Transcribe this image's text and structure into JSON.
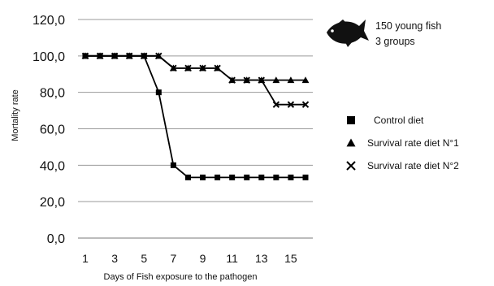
{
  "chart_data": {
    "type": "line",
    "title": "",
    "xlabel": "Days of Fish exposure to the pathogen",
    "ylabel": "Mortality rate",
    "x": [
      1,
      2,
      3,
      4,
      5,
      6,
      7,
      8,
      9,
      10,
      11,
      12,
      13,
      14,
      15,
      16
    ],
    "x_tick_labels": [
      "1",
      "3",
      "5",
      "7",
      "9",
      "11",
      "13",
      "15"
    ],
    "x_tick_values": [
      1,
      3,
      5,
      7,
      9,
      11,
      13,
      15
    ],
    "y_tick_labels": [
      "0,0",
      "20,0",
      "40,0",
      "60,0",
      "80,0",
      "100,0",
      "120,0"
    ],
    "y_tick_values": [
      0,
      20,
      40,
      60,
      80,
      100,
      120
    ],
    "ylim": [
      0,
      120
    ],
    "grid": "horizontal",
    "legend_position": "right",
    "series": [
      {
        "name": "Control diet",
        "marker": "square",
        "color": "#000000",
        "values": [
          100,
          100,
          100,
          100,
          100,
          80,
          40,
          33.3,
          33.3,
          33.3,
          33.3,
          33.3,
          33.3,
          33.3,
          33.3,
          33.3
        ]
      },
      {
        "name": "Survival rate diet N°1",
        "marker": "triangle",
        "color": "#000000",
        "values": [
          100,
          100,
          100,
          100,
          100,
          100,
          93.3,
          93.3,
          93.3,
          93.3,
          86.7,
          86.7,
          86.7,
          86.7,
          86.7,
          86.7
        ]
      },
      {
        "name": "Survival rate diet N°2",
        "marker": "cross",
        "color": "#000000",
        "values": [
          100,
          100,
          100,
          100,
          100,
          100,
          93.3,
          93.3,
          93.3,
          93.3,
          86.7,
          86.7,
          86.7,
          73.3,
          73.3,
          73.3
        ]
      }
    ],
    "annotation": {
      "icon": "fish-icon",
      "lines": [
        "150 young fish",
        "3 groups"
      ]
    }
  }
}
